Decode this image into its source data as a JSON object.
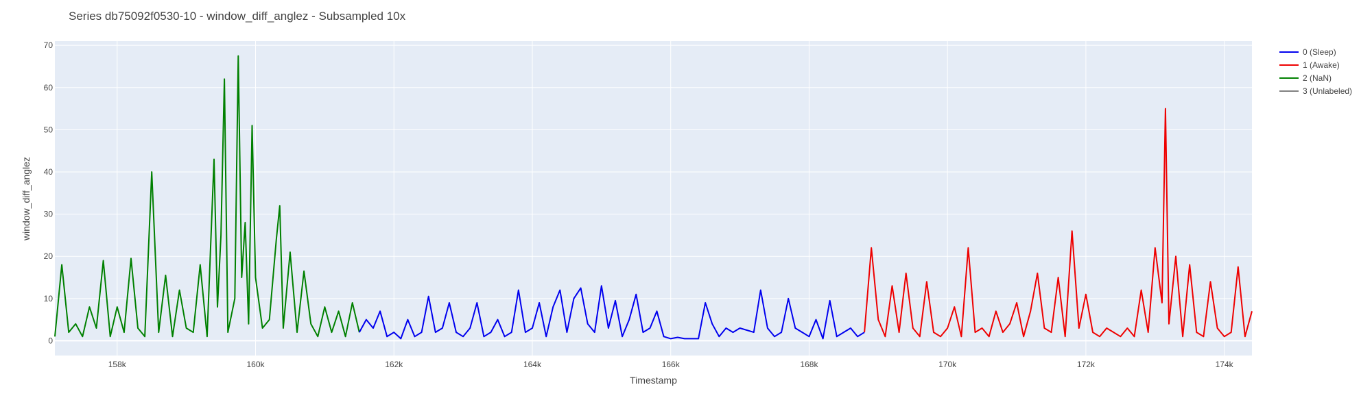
{
  "chart_data": {
    "type": "line",
    "title": "Series db75092f0530-10 - window_diff_anglez - Subsampled 10x",
    "xlabel": "Timestamp",
    "ylabel": "window_diff_anglez",
    "xlim": [
      157100,
      174400
    ],
    "ylim": [
      -3.5,
      71
    ],
    "x_tick_values": [
      158000,
      160000,
      162000,
      164000,
      166000,
      168000,
      170000,
      172000,
      174000
    ],
    "x_tick_labels": [
      "158k",
      "160k",
      "162k",
      "164k",
      "166k",
      "168k",
      "170k",
      "172k",
      "174k"
    ],
    "y_tick_values": [
      0,
      10,
      20,
      30,
      40,
      50,
      60,
      70
    ],
    "y_tick_labels": [
      "0",
      "10",
      "20",
      "30",
      "40",
      "50",
      "60",
      "70"
    ],
    "grid": true,
    "legend_position": "top-right",
    "series": [
      {
        "name": "0 (Sleep)",
        "color": "#0000ee",
        "x": [
          161500,
          161600,
          161700,
          161800,
          161900,
          162000,
          162100,
          162200,
          162300,
          162400,
          162500,
          162600,
          162700,
          162800,
          162900,
          163000,
          163100,
          163200,
          163300,
          163400,
          163500,
          163600,
          163700,
          163800,
          163900,
          164000,
          164100,
          164200,
          164300,
          164400,
          164500,
          164600,
          164700,
          164800,
          164900,
          165000,
          165100,
          165200,
          165300,
          165400,
          165500,
          165600,
          165700,
          165800,
          165900,
          166000,
          166100,
          166200,
          166300,
          166400,
          166500,
          166600,
          166700,
          166800,
          166900,
          167000,
          167100,
          167200,
          167300,
          167400,
          167500,
          167600,
          167700,
          167800,
          167900,
          168000,
          168100,
          168200,
          168300,
          168400,
          168500,
          168600,
          168700,
          168800
        ],
        "values": [
          2,
          5,
          3,
          7,
          1,
          2,
          0.5,
          5,
          1,
          2,
          10.5,
          2,
          3,
          9,
          2,
          1,
          3,
          9,
          1,
          2,
          5,
          1,
          2,
          12,
          2,
          3,
          9,
          1,
          8,
          12,
          2,
          10,
          12.5,
          4,
          2,
          13,
          3,
          9.5,
          1,
          5,
          11,
          2,
          3,
          7,
          1,
          0.5,
          0.8,
          0.5,
          0.5,
          0.5,
          9,
          4,
          1,
          3,
          2,
          3,
          2.5,
          2,
          12,
          3,
          1,
          2,
          10,
          3,
          2,
          1,
          5,
          0.5,
          9.5,
          1,
          2,
          3,
          1,
          2
        ]
      },
      {
        "name": "1 (Awake)",
        "color": "#ee0000",
        "x": [
          168800,
          168900,
          169000,
          169100,
          169200,
          169300,
          169400,
          169500,
          169600,
          169700,
          169800,
          169900,
          170000,
          170100,
          170200,
          170300,
          170400,
          170500,
          170600,
          170700,
          170800,
          170900,
          171000,
          171100,
          171200,
          171300,
          171400,
          171500,
          171600,
          171700,
          171800,
          171900,
          172000,
          172100,
          172200,
          172300,
          172400,
          172500,
          172600,
          172700,
          172800,
          172900,
          173000,
          173100,
          173150,
          173200,
          173300,
          173400,
          173500,
          173600,
          173700,
          173800,
          173900,
          174000,
          174100,
          174200,
          174300,
          174400
        ],
        "values": [
          2,
          22,
          5,
          1,
          13,
          2,
          16,
          3,
          1,
          14,
          2,
          1,
          3,
          8,
          1,
          22,
          2,
          3,
          1,
          7,
          2,
          4,
          9,
          1,
          7,
          16,
          3,
          2,
          15,
          1,
          26,
          3,
          11,
          2,
          1,
          3,
          2,
          1,
          3,
          1,
          12,
          2,
          22,
          9,
          55,
          4,
          20,
          1,
          18,
          2,
          1,
          14,
          3,
          1,
          2,
          17.5,
          1,
          7
        ]
      },
      {
        "name": "2 (NaN)",
        "color": "#008000",
        "x": [
          157100,
          157200,
          157300,
          157400,
          157500,
          157600,
          157700,
          157800,
          157900,
          158000,
          158100,
          158200,
          158300,
          158400,
          158500,
          158600,
          158700,
          158800,
          158900,
          159000,
          159100,
          159200,
          159300,
          159400,
          159450,
          159500,
          159550,
          159600,
          159700,
          159750,
          159800,
          159850,
          159900,
          159950,
          160000,
          160100,
          160200,
          160300,
          160350,
          160400,
          160500,
          160600,
          160700,
          160800,
          160900,
          161000,
          161100,
          161200,
          161300,
          161400,
          161500
        ],
        "values": [
          1,
          18,
          2,
          4,
          1,
          8,
          3,
          19,
          1,
          8,
          2,
          19.5,
          3,
          1,
          40,
          2,
          15.5,
          1,
          12,
          3,
          2,
          18,
          1,
          43,
          8,
          25,
          62,
          2,
          10,
          67.5,
          15,
          28,
          4,
          51,
          15,
          3,
          5,
          24,
          32,
          3,
          21,
          2,
          16.5,
          4,
          1,
          8,
          2,
          7,
          1,
          9,
          2
        ]
      },
      {
        "name": "3 (Unlabeled)",
        "color": "#808080",
        "x": [],
        "values": []
      }
    ]
  }
}
